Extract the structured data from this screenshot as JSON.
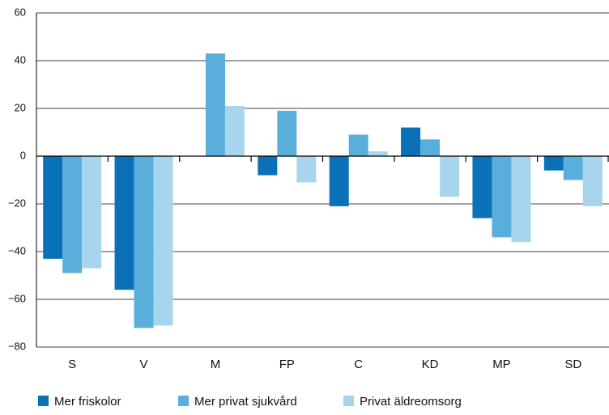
{
  "chart_data": {
    "type": "bar",
    "categories": [
      "S",
      "V",
      "M",
      "FP",
      "C",
      "KD",
      "MP",
      "SD"
    ],
    "series": [
      {
        "name": "Mer friskolor",
        "color": "#0a71b9",
        "values": [
          -43,
          -56,
          0,
          -8,
          -21,
          12,
          -26,
          -6
        ]
      },
      {
        "name": "Mer privat sjukvård",
        "color": "#5aaedc",
        "values": [
          -49,
          -72,
          43,
          19,
          9,
          7,
          -34,
          -10
        ]
      },
      {
        "name": "Privat äldreomsorg",
        "color": "#a8d5ee",
        "values": [
          -47,
          -71,
          21,
          -11,
          2,
          -17,
          -36,
          -21
        ]
      }
    ],
    "ylim": [
      -80,
      60
    ],
    "yticks": [
      {
        "value": -80,
        "label": "−80"
      },
      {
        "value": -60,
        "label": "−60"
      },
      {
        "value": -40,
        "label": "−40"
      },
      {
        "value": -20,
        "label": "−20"
      },
      0,
      20,
      40,
      60
    ],
    "grid": true,
    "legend": "bottom"
  }
}
